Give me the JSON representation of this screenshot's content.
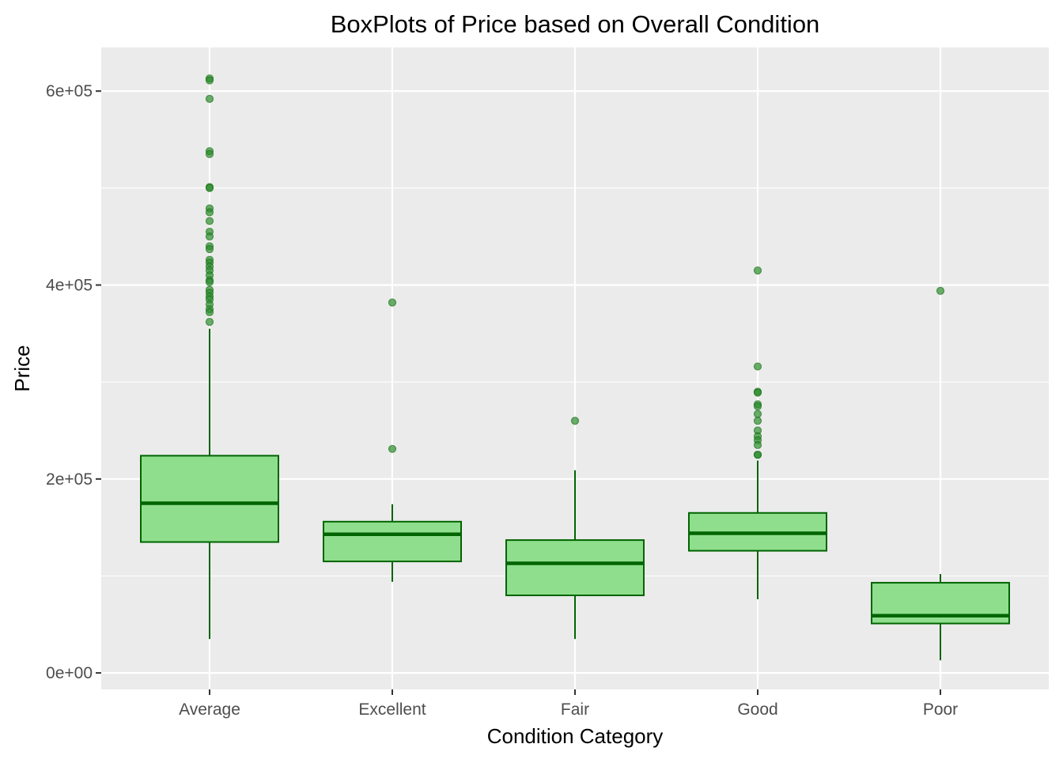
{
  "chart_data": {
    "type": "box",
    "title": "BoxPlots of Price based on Overall Condition",
    "xlabel": "Condition Category",
    "ylabel": "Price",
    "ylim": [
      -17000,
      645000
    ],
    "yticks": [
      0,
      200000,
      400000,
      600000
    ],
    "ytick_labels": [
      "0e+00",
      "2e+05",
      "4e+05",
      "6e+05"
    ],
    "grid": true,
    "colors": {
      "panel_background": "#ebebeb",
      "grid": "#ffffff",
      "box_fill": "#8fde8d",
      "box_line": "#006400",
      "outlier": "#2e8b2e"
    },
    "categories": [
      "Average",
      "Excellent",
      "Fair",
      "Good",
      "Poor"
    ],
    "boxes": [
      {
        "category": "Average",
        "whisker_low": 35000,
        "q1": 135000,
        "median": 175000,
        "q3": 224000,
        "whisker_high": 355000,
        "outliers": [
          613000,
          611000,
          592000,
          538000,
          535000,
          501000,
          500000,
          479000,
          475000,
          466000,
          455000,
          450000,
          440000,
          437000,
          426000,
          423000,
          419000,
          415000,
          410000,
          405000,
          403000,
          395000,
          392000,
          388000,
          385000,
          380000,
          375000,
          372000,
          362000
        ]
      },
      {
        "category": "Excellent",
        "whisker_low": 94000,
        "q1": 115000,
        "median": 143000,
        "q3": 156000,
        "whisker_high": 174000,
        "outliers": [
          382000,
          231000
        ]
      },
      {
        "category": "Fair",
        "whisker_low": 35000,
        "q1": 80000,
        "median": 113000,
        "q3": 137000,
        "whisker_high": 209000,
        "outliers": [
          260000
        ]
      },
      {
        "category": "Good",
        "whisker_low": 76000,
        "q1": 126000,
        "median": 144000,
        "q3": 165000,
        "whisker_high": 219000,
        "outliers": [
          415000,
          316000,
          290000,
          289000,
          277000,
          275000,
          267000,
          260000,
          250000,
          244000,
          240000,
          235000,
          225000,
          225000
        ]
      },
      {
        "category": "Poor",
        "whisker_low": 13000,
        "q1": 51000,
        "median": 59000,
        "q3": 93000,
        "whisker_high": 102000,
        "outliers": [
          394000
        ]
      }
    ]
  }
}
